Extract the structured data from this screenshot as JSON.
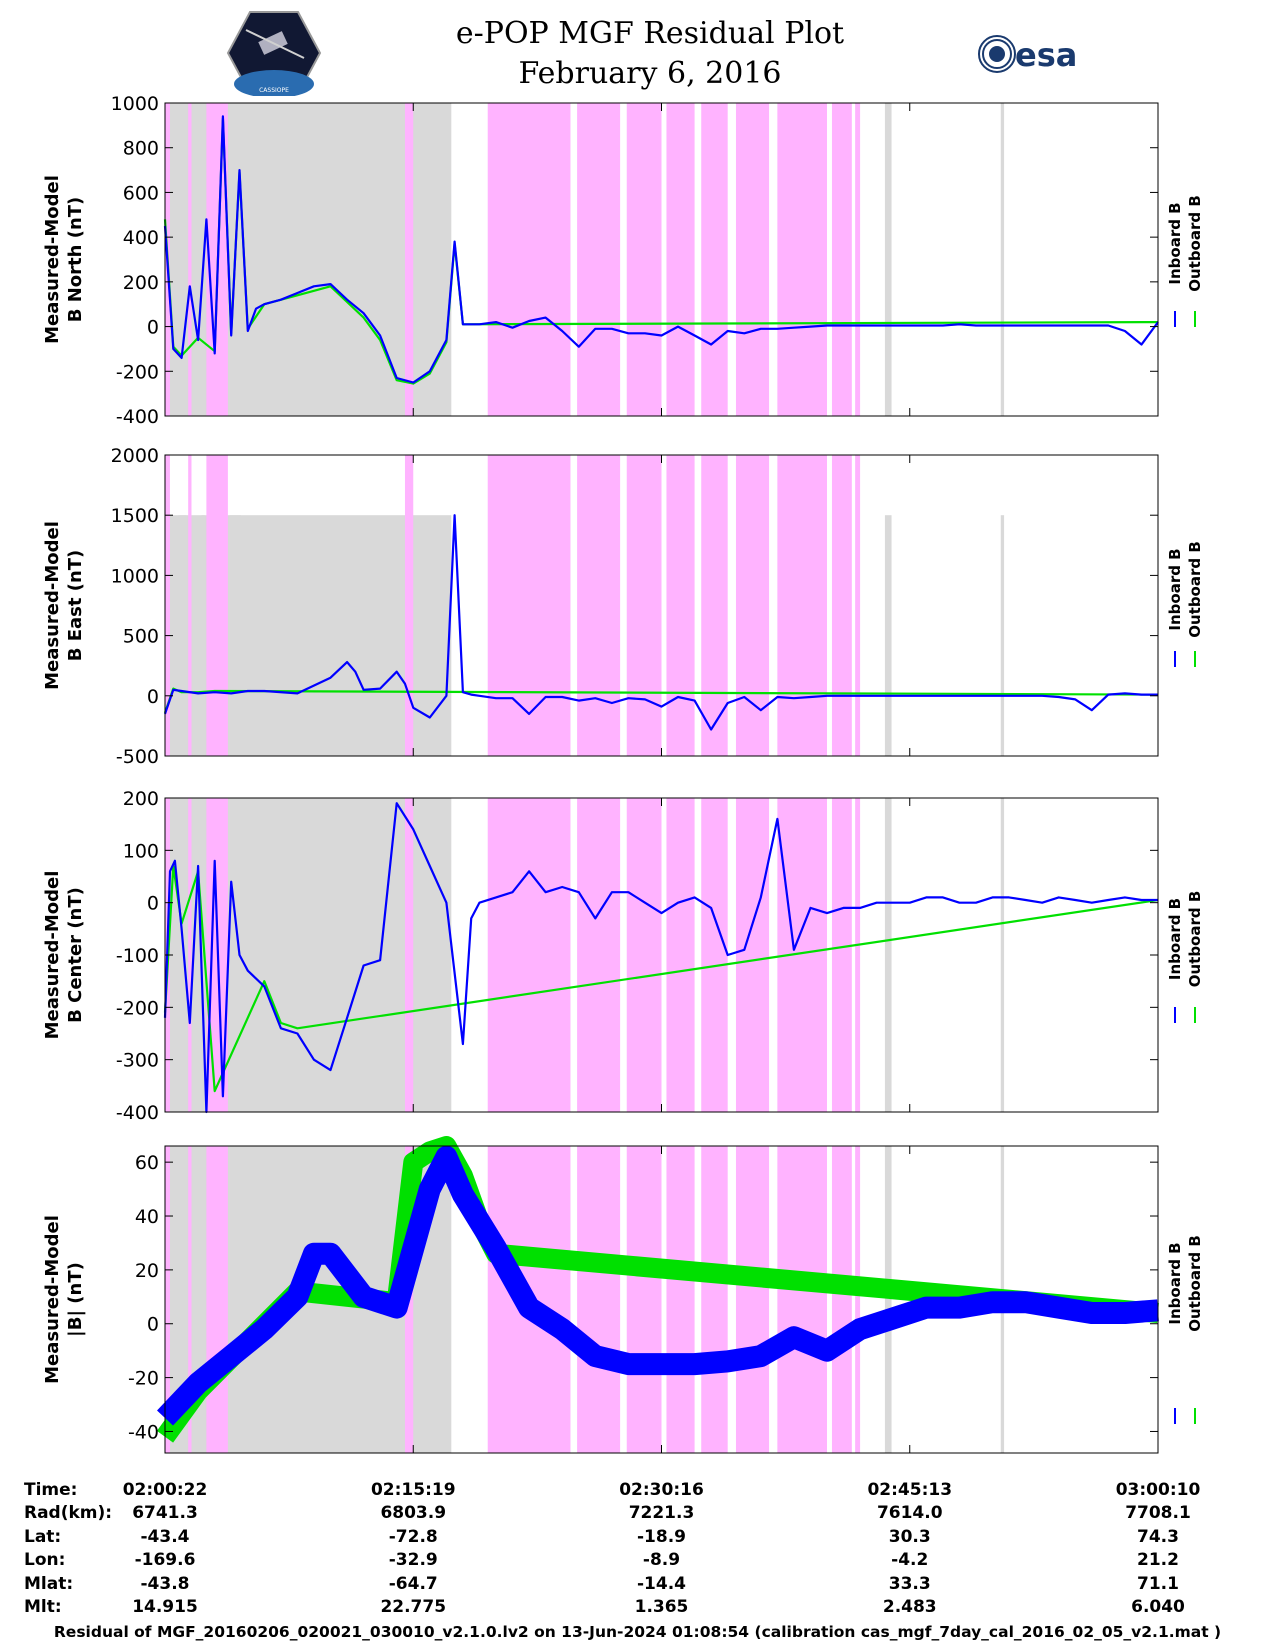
{
  "header": {
    "title": "e-POP MGF Residual Plot",
    "date": "February 6, 2016",
    "logo_left_name": "CASSIOPE",
    "logo_right_name": "esa"
  },
  "colors": {
    "inboard": "#0000ff",
    "outboard": "#00e000",
    "shade_gray": "#d9d9d9",
    "shade_pink": "#ffb3ff"
  },
  "chart_data": [
    {
      "type": "line",
      "ylabel": "Measured-Model B North (nT)",
      "ylabel_lines": [
        "Measured-Model",
        "B North (nT)"
      ],
      "ylim": [
        -400,
        1000
      ],
      "yticks": [
        -400,
        -200,
        0,
        200,
        400,
        600,
        800,
        1000
      ],
      "legend": [
        "Inboard B",
        "Outboard B"
      ],
      "shade_top": 1000,
      "series": [
        {
          "name": "Inboard B",
          "x": [
            0,
            0.5,
            1,
            1.5,
            2,
            2.5,
            3,
            3.5,
            4,
            4.5,
            5,
            5.5,
            6,
            7,
            8,
            9,
            10,
            11,
            12,
            13,
            14,
            15,
            16,
            17,
            17.5,
            18,
            19,
            20,
            21,
            22,
            23,
            24,
            25,
            26,
            27,
            28,
            29,
            30,
            31,
            32,
            33,
            34,
            35,
            36,
            37,
            38,
            39,
            40,
            41,
            42,
            43,
            44,
            45,
            46,
            47,
            48,
            49,
            50,
            51,
            52,
            53,
            54,
            55,
            56,
            57,
            58,
            59,
            60
          ],
          "values": [
            450,
            -100,
            -140,
            180,
            -60,
            480,
            -120,
            940,
            -40,
            700,
            -20,
            80,
            100,
            120,
            150,
            180,
            190,
            120,
            60,
            -40,
            -230,
            -250,
            -200,
            -60,
            380,
            10,
            10,
            20,
            -5,
            25,
            40,
            -20,
            -90,
            -10,
            -10,
            -30,
            -30,
            -40,
            0,
            -40,
            -80,
            -20,
            -30,
            -10,
            -10,
            -5,
            0,
            5,
            5,
            5,
            5,
            5,
            5,
            5,
            5,
            10,
            5,
            5,
            5,
            5,
            5,
            5,
            5,
            5,
            5,
            -20,
            -80,
            20
          ]
        },
        {
          "name": "Outboard B",
          "x": [
            0,
            0.5,
            1,
            2,
            3,
            3.5,
            4,
            4.5,
            5,
            6,
            8,
            10,
            11,
            12,
            13,
            14,
            15,
            16,
            17,
            17.5,
            18,
            60
          ],
          "values": [
            480,
            -90,
            -130,
            -50,
            -110,
            930,
            -30,
            690,
            -10,
            100,
            140,
            180,
            110,
            40,
            -60,
            -240,
            -255,
            -210,
            -70,
            370,
            10,
            20
          ]
        }
      ]
    },
    {
      "type": "line",
      "ylabel": "Measured-Model B East (nT)",
      "ylabel_lines": [
        "Measured-Model",
        "B East (nT)"
      ],
      "ylim": [
        -500,
        2000
      ],
      "yticks": [
        -500,
        0,
        500,
        1000,
        1500,
        2000
      ],
      "legend": [
        "Inboard B",
        "Outboard B"
      ],
      "shade_top": 1500,
      "series": [
        {
          "name": "Inboard B",
          "x": [
            0,
            0.5,
            1,
            2,
            3,
            4,
            5,
            6,
            8,
            10,
            11,
            11.5,
            12,
            13,
            14,
            14.5,
            15,
            16,
            17,
            17.5,
            18,
            18.5,
            19,
            20,
            21,
            22,
            23,
            24,
            25,
            26,
            27,
            28,
            29,
            30,
            31,
            32,
            33,
            34,
            35,
            36,
            37,
            38,
            39,
            40,
            41,
            42,
            43,
            44,
            45,
            46,
            47,
            48,
            49,
            50,
            51,
            52,
            53,
            54,
            55,
            56,
            57,
            58,
            59,
            60
          ],
          "values": [
            -150,
            50,
            40,
            20,
            30,
            20,
            40,
            40,
            20,
            150,
            280,
            200,
            50,
            60,
            200,
            100,
            -100,
            -180,
            0,
            1500,
            30,
            10,
            0,
            -20,
            -20,
            -150,
            -10,
            -10,
            -40,
            -20,
            -60,
            -20,
            -30,
            -90,
            -10,
            -40,
            -280,
            -60,
            -10,
            -120,
            -10,
            -20,
            -10,
            0,
            0,
            0,
            0,
            0,
            0,
            0,
            0,
            0,
            0,
            0,
            0,
            0,
            0,
            -10,
            -30,
            -120,
            10,
            20,
            10,
            10
          ]
        },
        {
          "name": "Outboard B",
          "x": [
            0,
            0.5,
            1,
            2,
            3,
            60
          ],
          "values": [
            -140,
            60,
            30,
            30,
            40,
            10
          ]
        }
      ]
    },
    {
      "type": "line",
      "ylabel": "Measured-Model B Center (nT)",
      "ylabel_lines": [
        "Measured-Model",
        "B Center (nT)"
      ],
      "ylim": [
        -400,
        200
      ],
      "yticks": [
        -400,
        -300,
        -200,
        -100,
        0,
        100,
        200
      ],
      "legend": [
        "Inboard B",
        "Outboard B"
      ],
      "shade_top": 200,
      "series": [
        {
          "name": "Inboard B",
          "x": [
            0,
            0.3,
            0.6,
            1,
            1.5,
            2,
            2.5,
            3,
            3.5,
            4,
            4.5,
            5,
            6,
            7,
            8,
            9,
            10,
            11,
            12,
            13,
            14,
            15,
            16,
            17,
            18,
            18.5,
            19,
            20,
            21,
            22,
            23,
            24,
            25,
            26,
            27,
            28,
            29,
            30,
            31,
            32,
            33,
            34,
            35,
            36,
            37,
            38,
            39,
            40,
            41,
            42,
            43,
            44,
            45,
            46,
            47,
            48,
            49,
            50,
            51,
            52,
            53,
            54,
            55,
            56,
            57,
            58,
            59,
            60
          ],
          "values": [
            -220,
            60,
            80,
            -50,
            -230,
            70,
            -400,
            80,
            -370,
            40,
            -100,
            -130,
            -160,
            -240,
            -250,
            -300,
            -320,
            -220,
            -120,
            -110,
            190,
            140,
            70,
            0,
            -270,
            -30,
            0,
            10,
            20,
            60,
            20,
            30,
            20,
            -30,
            20,
            20,
            0,
            -20,
            0,
            10,
            -10,
            -100,
            -90,
            10,
            160,
            -90,
            -10,
            -20,
            -10,
            -10,
            0,
            0,
            0,
            10,
            10,
            0,
            0,
            10,
            10,
            5,
            0,
            10,
            5,
            0,
            5,
            10,
            5,
            5
          ]
        },
        {
          "name": "Outboard B",
          "x": [
            0,
            0.5,
            1,
            2,
            3,
            6,
            7,
            8,
            60
          ],
          "values": [
            -210,
            70,
            -40,
            60,
            -360,
            -150,
            -230,
            -240,
            5
          ]
        }
      ]
    },
    {
      "type": "line",
      "ylabel": "Measured-Model |B| (nT)",
      "ylabel_lines": [
        "Measured-Model",
        "|B| (nT)"
      ],
      "ylim": [
        -48,
        66
      ],
      "yticks": [
        -40,
        -20,
        0,
        20,
        40,
        60
      ],
      "legend": [
        "Inboard B",
        "Outboard B"
      ],
      "shade_top": 66,
      "series": [
        {
          "name": "Inboard B",
          "x": [
            0,
            2,
            4,
            6,
            8,
            9,
            10,
            12,
            14,
            16,
            17,
            18,
            20,
            22,
            24,
            26,
            28,
            30,
            32,
            34,
            36,
            38,
            40,
            42,
            44,
            46,
            48,
            50,
            52,
            54,
            56,
            58,
            60
          ],
          "values": [
            -35,
            -22,
            -12,
            -2,
            10,
            26,
            26,
            10,
            6,
            50,
            62,
            48,
            28,
            6,
            -2,
            -12,
            -15,
            -15,
            -15,
            -14,
            -12,
            -5,
            -10,
            -2,
            2,
            6,
            6,
            8,
            8,
            6,
            4,
            4,
            5
          ]
        },
        {
          "name": "Outboard B",
          "x": [
            0,
            2,
            8,
            14,
            15,
            16,
            17,
            18,
            19,
            20,
            60
          ],
          "values": [
            -42,
            -25,
            12,
            8,
            60,
            64,
            66,
            55,
            38,
            26,
            4
          ]
        }
      ]
    }
  ],
  "xaxis": {
    "ticks_min": [
      0,
      15,
      30,
      45,
      60
    ]
  },
  "shading": {
    "gray": [
      [
        0,
        17.3
      ],
      [
        43.5,
        43.9
      ],
      [
        50.5,
        50.7
      ]
    ],
    "pink": [
      [
        0,
        0.3
      ],
      [
        1.4,
        1.6
      ],
      [
        2.5,
        3.8
      ],
      [
        14.5,
        15
      ],
      [
        19.5,
        24.5
      ],
      [
        24.9,
        27.5
      ],
      [
        27.9,
        30
      ],
      [
        30.3,
        32
      ],
      [
        32.4,
        34
      ],
      [
        34.5,
        36.5
      ],
      [
        37,
        40
      ],
      [
        40.3,
        41.5
      ],
      [
        41.7,
        42
      ]
    ],
    "gray_over": [
      [
        0.8,
        1.3
      ],
      [
        2.2,
        2.4
      ],
      [
        3.9,
        4.6
      ]
    ]
  },
  "info_table": {
    "labels": [
      "Time:",
      "Rad(km):",
      "Lat:",
      "Lon:",
      "Mlat:",
      "Mlt:"
    ],
    "columns": [
      [
        "02:00:22",
        "6741.3",
        "-43.4",
        "-169.6",
        "-43.8",
        "14.915"
      ],
      [
        "02:15:19",
        "6803.9",
        "-72.8",
        "-32.9",
        "-64.7",
        "22.775"
      ],
      [
        "02:30:16",
        "7221.3",
        "-18.9",
        "-8.9",
        "-14.4",
        "1.365"
      ],
      [
        "02:45:13",
        "7614.0",
        "30.3",
        "-4.2",
        "33.3",
        "2.483"
      ],
      [
        "03:00:10",
        "7708.1",
        "74.3",
        "21.2",
        "71.1",
        "6.040"
      ]
    ]
  },
  "footer": "Residual of MGF_20160206_020021_030010_v2.1.0.lv2 on 13-Jun-2024 01:08:54 (calibration cas_mgf_7day_cal_2016_02_05_v2.1.mat )"
}
